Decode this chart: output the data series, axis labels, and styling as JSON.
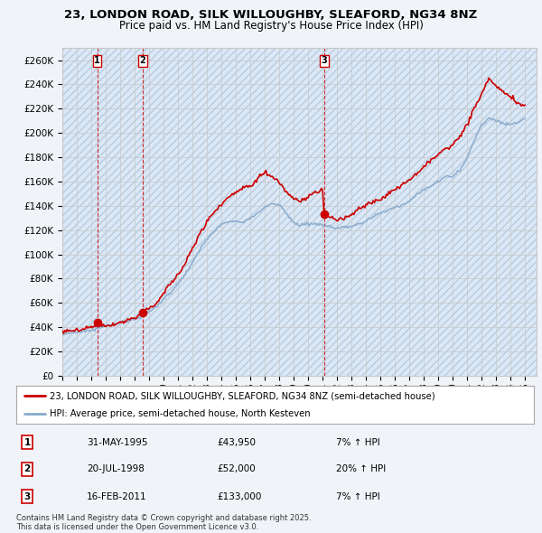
{
  "title": "23, LONDON ROAD, SILK WILLOUGHBY, SLEAFORD, NG34 8NZ",
  "subtitle": "Price paid vs. HM Land Registry's House Price Index (HPI)",
  "ytick_labels": [
    "£0",
    "£20K",
    "£40K",
    "£60K",
    "£80K",
    "£100K",
    "£120K",
    "£140K",
    "£160K",
    "£180K",
    "£200K",
    "£220K",
    "£240K",
    "£260K"
  ],
  "yticks": [
    0,
    20000,
    40000,
    60000,
    80000,
    100000,
    120000,
    140000,
    160000,
    180000,
    200000,
    220000,
    240000,
    260000
  ],
  "ylim": [
    0,
    270000
  ],
  "xlim_start": 1993.0,
  "xlim_end": 2025.8,
  "sale_dates": [
    1995.41,
    1998.55,
    2011.12
  ],
  "sale_prices": [
    43950,
    52000,
    133000
  ],
  "sale_labels": [
    "1",
    "2",
    "3"
  ],
  "legend_entries": [
    "23, LONDON ROAD, SILK WILLOUGHBY, SLEAFORD, NG34 8NZ (semi-detached house)",
    "HPI: Average price, semi-detached house, North Kesteven"
  ],
  "table_data": [
    [
      "1",
      "31-MAY-1995",
      "£43,950",
      "7% ↑ HPI"
    ],
    [
      "2",
      "20-JUL-1998",
      "£52,000",
      "20% ↑ HPI"
    ],
    [
      "3",
      "16-FEB-2011",
      "£133,000",
      "7% ↑ HPI"
    ]
  ],
  "footer": "Contains HM Land Registry data © Crown copyright and database right 2025.\nThis data is licensed under the Open Government Licence v3.0.",
  "line_color_red": "#cc0000",
  "line_color_blue": "#88aacc",
  "fill_color": "#dce8f5",
  "bg_color": "#f0f4f8",
  "plot_bg": "#ffffff",
  "grid_color": "#c8c8c8",
  "hatch_color": "#d8e0e8"
}
